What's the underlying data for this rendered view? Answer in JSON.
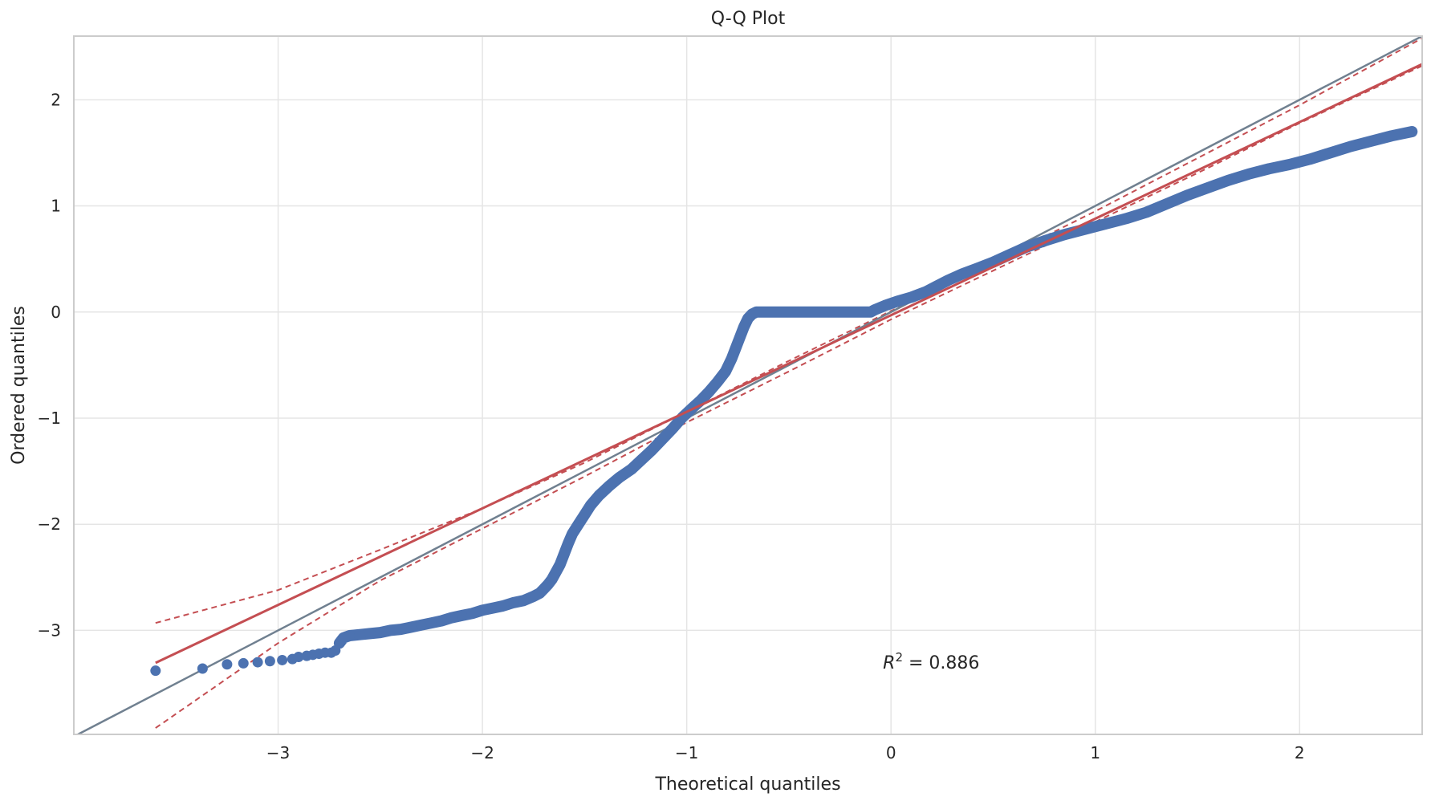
{
  "chart_data": {
    "type": "scatter",
    "title": "Q-Q Plot",
    "xlabel": "Theoretical quantiles",
    "ylabel": "Ordered quantiles",
    "xlim": [
      -4.0,
      2.6
    ],
    "ylim": [
      -3.98,
      2.6
    ],
    "xticks": [
      -3,
      -2,
      -1,
      0,
      1,
      2
    ],
    "xtick_labels": [
      "−3",
      "−2",
      "−1",
      "0",
      "1",
      "2"
    ],
    "yticks": [
      -3,
      -2,
      -1,
      0,
      1,
      2
    ],
    "ytick_labels": [
      "−3",
      "−2",
      "−1",
      "0",
      "1",
      "2"
    ],
    "grid": true,
    "annotation": {
      "text_main": "R",
      "text_sup": "2",
      "text_rest": " = 0.886",
      "x": 0.0,
      "y": -3.3
    },
    "sample_points": [
      [
        -3.6,
        -3.38
      ],
      [
        -3.37,
        -3.36
      ],
      [
        -3.25,
        -3.32
      ],
      [
        -3.17,
        -3.31
      ],
      [
        -3.1,
        -3.3
      ],
      [
        -3.04,
        -3.29
      ],
      [
        -2.98,
        -3.28
      ],
      [
        -2.93,
        -3.27
      ],
      [
        -2.9,
        -3.25
      ],
      [
        -2.86,
        -3.24
      ],
      [
        -2.83,
        -3.23
      ],
      [
        -2.8,
        -3.22
      ],
      [
        -2.77,
        -3.21
      ],
      [
        -2.74,
        -3.21
      ],
      [
        -2.72,
        -3.19
      ],
      [
        -2.7,
        -3.12
      ],
      [
        -2.68,
        -3.07
      ],
      [
        -2.65,
        -3.05
      ],
      [
        -2.6,
        -3.04
      ],
      [
        -2.55,
        -3.03
      ],
      [
        -2.5,
        -3.02
      ],
      [
        -2.45,
        -3.0
      ],
      [
        -2.4,
        -2.99
      ],
      [
        -2.35,
        -2.97
      ],
      [
        -2.3,
        -2.95
      ],
      [
        -2.25,
        -2.93
      ],
      [
        -2.2,
        -2.91
      ],
      [
        -2.15,
        -2.88
      ],
      [
        -2.1,
        -2.86
      ],
      [
        -2.05,
        -2.84
      ],
      [
        -2.0,
        -2.81
      ],
      [
        -1.95,
        -2.79
      ],
      [
        -1.9,
        -2.77
      ],
      [
        -1.85,
        -2.74
      ],
      [
        -1.8,
        -2.72
      ],
      [
        -1.75,
        -2.68
      ],
      [
        -1.72,
        -2.65
      ],
      [
        -1.7,
        -2.61
      ],
      [
        -1.68,
        -2.57
      ],
      [
        -1.66,
        -2.52
      ],
      [
        -1.64,
        -2.45
      ],
      [
        -1.62,
        -2.38
      ],
      [
        -1.6,
        -2.28
      ],
      [
        -1.58,
        -2.18
      ],
      [
        -1.56,
        -2.09
      ],
      [
        -1.53,
        -2.0
      ],
      [
        -1.5,
        -1.91
      ],
      [
        -1.47,
        -1.82
      ],
      [
        -1.43,
        -1.73
      ],
      [
        -1.38,
        -1.64
      ],
      [
        -1.33,
        -1.56
      ],
      [
        -1.27,
        -1.48
      ],
      [
        -1.22,
        -1.39
      ],
      [
        -1.17,
        -1.3
      ],
      [
        -1.12,
        -1.2
      ],
      [
        -1.07,
        -1.1
      ],
      [
        -1.02,
        -0.99
      ],
      [
        -0.97,
        -0.9
      ],
      [
        -0.93,
        -0.83
      ],
      [
        -0.89,
        -0.75
      ],
      [
        -0.85,
        -0.66
      ],
      [
        -0.81,
        -0.56
      ],
      [
        -0.78,
        -0.44
      ],
      [
        -0.76,
        -0.34
      ],
      [
        -0.74,
        -0.24
      ],
      [
        -0.72,
        -0.14
      ],
      [
        -0.7,
        -0.06
      ],
      [
        -0.68,
        -0.02
      ],
      [
        -0.66,
        0.0
      ],
      [
        -0.5,
        0.0
      ],
      [
        -0.3,
        0.0
      ],
      [
        -0.1,
        0.0
      ],
      [
        -0.08,
        0.02
      ],
      [
        -0.03,
        0.06
      ],
      [
        0.03,
        0.1
      ],
      [
        0.1,
        0.14
      ],
      [
        0.17,
        0.19
      ],
      [
        0.22,
        0.24
      ],
      [
        0.28,
        0.3
      ],
      [
        0.35,
        0.36
      ],
      [
        0.42,
        0.41
      ],
      [
        0.5,
        0.47
      ],
      [
        0.58,
        0.54
      ],
      [
        0.66,
        0.61
      ],
      [
        0.75,
        0.67
      ],
      [
        0.85,
        0.73
      ],
      [
        0.95,
        0.78
      ],
      [
        1.05,
        0.83
      ],
      [
        1.15,
        0.88
      ],
      [
        1.25,
        0.94
      ],
      [
        1.35,
        1.02
      ],
      [
        1.45,
        1.1
      ],
      [
        1.55,
        1.17
      ],
      [
        1.65,
        1.24
      ],
      [
        1.75,
        1.3
      ],
      [
        1.85,
        1.35
      ],
      [
        1.95,
        1.39
      ],
      [
        2.05,
        1.44
      ],
      [
        2.15,
        1.5
      ],
      [
        2.25,
        1.56
      ],
      [
        2.35,
        1.61
      ],
      [
        2.45,
        1.66
      ],
      [
        2.55,
        1.7
      ]
    ],
    "fit_line": {
      "slope": 0.91,
      "intercept": -0.03,
      "x_range": [
        -3.6,
        2.6
      ],
      "color": "#c44e52"
    },
    "reference_line": {
      "slope": 1.0,
      "intercept": 0.0,
      "color": "#708090"
    },
    "confidence_band": {
      "upper": [
        [
          -3.6,
          -2.93
        ],
        [
          -3.0,
          -2.62
        ],
        [
          -2.5,
          -2.24
        ],
        [
          -2.0,
          -1.85
        ],
        [
          -1.5,
          -1.42
        ],
        [
          -1.0,
          -0.94
        ],
        [
          -0.5,
          -0.46
        ],
        [
          0.0,
          0.01
        ],
        [
          0.5,
          0.47
        ],
        [
          1.0,
          0.95
        ],
        [
          1.5,
          1.45
        ],
        [
          2.0,
          1.95
        ],
        [
          2.6,
          2.58
        ]
      ],
      "lower": [
        [
          -3.6,
          -3.92
        ],
        [
          -3.0,
          -3.12
        ],
        [
          -2.5,
          -2.53
        ],
        [
          -2.0,
          -2.04
        ],
        [
          -1.5,
          -1.55
        ],
        [
          -1.0,
          -1.04
        ],
        [
          -0.5,
          -0.56
        ],
        [
          0.0,
          -0.07
        ],
        [
          0.5,
          0.39
        ],
        [
          1.0,
          0.85
        ],
        [
          1.5,
          1.31
        ],
        [
          2.0,
          1.78
        ],
        [
          2.6,
          2.32
        ]
      ],
      "color": "#c44e52"
    },
    "point_color": "#4c72b0"
  }
}
